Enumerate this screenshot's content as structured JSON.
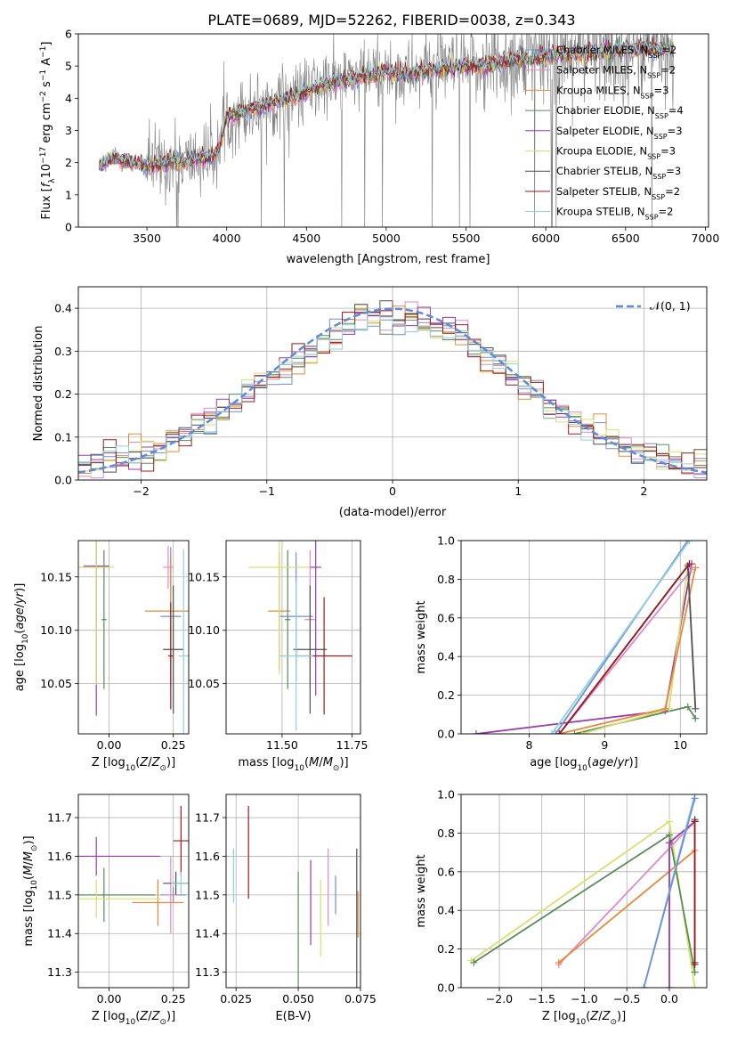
{
  "figure_title": "PLATE=0689, MJD=52262, FIBERID=0038, z=0.343",
  "colors": {
    "chabrier_miles": "#6f8fd6",
    "salpeter_miles": "#e089c6",
    "kroupa_miles": "#e8893a",
    "chabrier_elodie": "#5a8c5a",
    "salpeter_elodie": "#9a3aaf",
    "kroupa_elodie": "#d8e070",
    "chabrier_stelib": "#505050",
    "salpeter_stelib": "#9b1b1b",
    "kroupa_stelib": "#8fd0dc",
    "data": "#808080",
    "normal_curve": "#5b8be0"
  },
  "chart_data": [
    {
      "type": "line",
      "panel": "spectrum",
      "xlabel": "wavelength [Angstrom, rest frame]",
      "ylabel": "Flux [f_λ 10^-17 erg cm^-2 s^-1 A^-1]",
      "xlim": [
        3070,
        7020
      ],
      "ylim": [
        0,
        6
      ],
      "xticks": [
        3500,
        4000,
        4500,
        5000,
        5500,
        6000,
        6500,
        7000
      ],
      "yticks": [
        0,
        1,
        2,
        3,
        4,
        5,
        6
      ],
      "grid": false,
      "legend_position": "right",
      "continuum": {
        "x": [
          3200,
          3300,
          3400,
          3500,
          3600,
          3700,
          3800,
          3900,
          3950,
          4000,
          4100,
          4200,
          4300,
          4400,
          4500,
          4600,
          4700,
          4800,
          4900,
          5000,
          5100,
          5200,
          5300,
          5400,
          5500,
          5600,
          5700,
          5800,
          5900,
          6000,
          6100,
          6200,
          6300,
          6400,
          6500,
          6600,
          6700,
          6800
        ],
        "y": [
          1.9,
          2.2,
          2.0,
          1.9,
          2.0,
          2.0,
          2.1,
          2.2,
          2.4,
          3.4,
          3.6,
          3.7,
          3.9,
          4.0,
          4.2,
          4.4,
          4.5,
          4.6,
          4.7,
          4.8,
          4.75,
          4.8,
          4.9,
          4.95,
          5.0,
          5.0,
          5.1,
          5.2,
          5.2,
          5.3,
          5.35,
          5.4,
          5.4,
          5.45,
          5.5,
          5.55,
          5.5,
          5.6
        ]
      },
      "series": [
        {
          "name": "Chabrier MILES, N_SSP=2",
          "label": "Chabrier MILES, N",
          "nssp": "=2",
          "color_key": "chabrier_miles"
        },
        {
          "name": "Salpeter MILES, N_SSP=2",
          "label": "Salpeter MILES, N",
          "nssp": "=2",
          "color_key": "salpeter_miles"
        },
        {
          "name": "Kroupa MILES, N_SSP=3",
          "label": "Kroupa MILES, N",
          "nssp": "=3",
          "color_key": "kroupa_miles"
        },
        {
          "name": "Chabrier ELODIE, N_SSP=4",
          "label": "Chabrier ELODIE, N",
          "nssp": "=4",
          "color_key": "chabrier_elodie"
        },
        {
          "name": "Salpeter ELODIE, N_SSP=3",
          "label": "Salpeter ELODIE, N",
          "nssp": "=3",
          "color_key": "salpeter_elodie"
        },
        {
          "name": "Kroupa ELODIE, N_SSP=3",
          "label": "Kroupa ELODIE, N",
          "nssp": "=3",
          "color_key": "kroupa_elodie"
        },
        {
          "name": "Chabrier STELIB, N_SSP=3",
          "label": "Chabrier STELIB, N",
          "nssp": "=3",
          "color_key": "chabrier_stelib"
        },
        {
          "name": "Salpeter STELIB, N_SSP=2",
          "label": "Salpeter STELIB, N",
          "nssp": "=2",
          "color_key": "salpeter_stelib"
        },
        {
          "name": "Kroupa STELIB, N_SSP=2",
          "label": "Kroupa STELIB, N",
          "nssp": "=2",
          "color_key": "kroupa_stelib"
        }
      ],
      "legend_sub": "SSP"
    },
    {
      "type": "line",
      "panel": "residuals",
      "xlabel": "(data-model)/error",
      "ylabel": "Normed distribution",
      "xlim": [
        -2.5,
        2.5
      ],
      "ylim": [
        0,
        0.45
      ],
      "xticks": [
        -2,
        -1,
        0,
        1,
        2
      ],
      "yticks": [
        0.0,
        0.1,
        0.2,
        0.3,
        0.4
      ],
      "grid": true,
      "legend_position": "top-right",
      "normal_label": "𝒩(0, 1)",
      "hist_bin_width": 0.1
    },
    {
      "type": "scatter",
      "panel": "age-vs-Z",
      "xlabel": "Z [log10(Z/Z⊙)]",
      "ylabel": "age [log10(age/yr)]",
      "xlim": [
        -0.12,
        0.31
      ],
      "ylim": [
        10.003,
        10.184
      ],
      "xticks": [
        0.0,
        0.25
      ],
      "yticks": [
        10.05,
        10.1,
        10.15
      ],
      "points": [
        {
          "color_key": "chabrier_miles",
          "x": 0.24,
          "y": 10.113,
          "xerr": 0.04,
          "yerr": 0.065
        },
        {
          "color_key": "salpeter_miles",
          "x": 0.23,
          "y": 10.159,
          "xerr": 0.02,
          "yerr": 0.02
        },
        {
          "color_key": "kroupa_miles",
          "x": 0.24,
          "y": 10.118,
          "xerr": 0.1,
          "yerr": 0.05
        },
        {
          "color_key": "chabrier_elodie",
          "x": -0.02,
          "y": 10.11,
          "xerr": 0.01,
          "yerr": 0.065
        },
        {
          "color_key": "salpeter_elodie",
          "x": -0.05,
          "y": 10.16,
          "xerr": 0.05,
          "yerr": 0.14
        },
        {
          "color_key": "kroupa_elodie",
          "x": -0.05,
          "y": 10.159,
          "xerr": 0.07,
          "yerr": 0.11
        },
        {
          "color_key": "chabrier_stelib",
          "x": 0.25,
          "y": 10.082,
          "xerr": 0.04,
          "yerr": 0.06
        },
        {
          "color_key": "salpeter_stelib",
          "x": 0.24,
          "y": 10.076,
          "xerr": 0.01,
          "yerr": 0.05
        },
        {
          "color_key": "kroupa_stelib",
          "x": 0.29,
          "y": 10.076,
          "xerr": 0.02,
          "yerr": 0.1
        }
      ]
    },
    {
      "type": "scatter",
      "panel": "age-vs-mass",
      "xlabel": "mass [log10(M/M⊙)]",
      "ylabel": "",
      "xlim": [
        11.3,
        11.78
      ],
      "ylim": [
        10.003,
        10.184
      ],
      "xticks": [
        11.5,
        11.75
      ],
      "yticks": [
        10.05,
        10.1,
        10.15
      ],
      "points": [
        {
          "color_key": "chabrier_miles",
          "x": 11.55,
          "y": 10.113,
          "xerr": 0.06,
          "yerr": 0.06
        },
        {
          "color_key": "salpeter_miles",
          "x": 11.6,
          "y": 10.11,
          "xerr": 0.02,
          "yerr": 0.065
        },
        {
          "color_key": "kroupa_miles",
          "x": 11.49,
          "y": 10.118,
          "xerr": 0.04,
          "yerr": 0.055
        },
        {
          "color_key": "chabrier_elodie",
          "x": 11.52,
          "y": 10.11,
          "xerr": 0.01,
          "yerr": 0.065
        },
        {
          "color_key": "salpeter_elodie",
          "x": 11.62,
          "y": 10.159,
          "xerr": 0.02,
          "yerr": 0.12
        },
        {
          "color_key": "kroupa_elodie",
          "x": 11.49,
          "y": 10.159,
          "xerr": 0.11,
          "yerr": 0.1
        },
        {
          "color_key": "chabrier_stelib",
          "x": 11.6,
          "y": 10.082,
          "xerr": 0.06,
          "yerr": 0.06
        },
        {
          "color_key": "salpeter_stelib",
          "x": 11.65,
          "y": 10.076,
          "xerr": 0.1,
          "yerr": 0.055
        },
        {
          "color_key": "kroupa_stelib",
          "x": 11.55,
          "y": 10.076,
          "xerr": 0.06,
          "yerr": 0.07
        }
      ]
    },
    {
      "type": "line",
      "panel": "weight-vs-age",
      "xlabel": "age [log10(age/yr)]",
      "ylabel": "mass weight",
      "xlim": [
        7.1,
        10.35
      ],
      "ylim": [
        0,
        1
      ],
      "xticks": [
        8,
        9,
        10
      ],
      "yticks": [
        0.0,
        0.2,
        0.4,
        0.6,
        0.8,
        1.0
      ],
      "grid": true,
      "series": [
        {
          "color_key": "chabrier_elodie",
          "x": [
            8.6,
            10.1,
            10.2
          ],
          "y": [
            0.0,
            0.14,
            0.08
          ]
        },
        {
          "color_key": "salpeter_elodie",
          "x": [
            7.3,
            9.8,
            10.15
          ],
          "y": [
            0.0,
            0.12,
            0.88
          ]
        },
        {
          "color_key": "kroupa_elodie",
          "x": [
            8.7,
            9.85,
            10.1
          ],
          "y": [
            0.0,
            0.13,
            0.87
          ]
        },
        {
          "color_key": "chabrier_miles",
          "x": [
            8.35,
            10.1
          ],
          "y": [
            0.0,
            1.0
          ]
        },
        {
          "color_key": "salpeter_miles",
          "x": [
            8.4,
            10.15
          ],
          "y": [
            0.0,
            0.85
          ]
        },
        {
          "color_key": "kroupa_miles",
          "x": [
            8.4,
            9.8,
            10.2
          ],
          "y": [
            0.0,
            0.13,
            0.86
          ]
        },
        {
          "color_key": "chabrier_stelib",
          "x": [
            8.4,
            10.1,
            10.2
          ],
          "y": [
            0.0,
            0.87,
            0.13
          ]
        },
        {
          "color_key": "salpeter_stelib",
          "x": [
            8.4,
            10.12
          ],
          "y": [
            0.0,
            0.88
          ]
        },
        {
          "color_key": "kroupa_stelib",
          "x": [
            8.3,
            10.12
          ],
          "y": [
            0.0,
            1.0
          ]
        }
      ]
    },
    {
      "type": "scatter",
      "panel": "mass-vs-Z",
      "xlabel": "Z [log10(Z/Z⊙)]",
      "ylabel": "mass [log10(M/M⊙)]",
      "xlim": [
        -0.12,
        0.31
      ],
      "ylim": [
        11.26,
        11.76
      ],
      "xticks": [
        0.0,
        0.25
      ],
      "yticks": [
        11.3,
        11.4,
        11.5,
        11.6,
        11.7
      ],
      "points": [
        {
          "color_key": "chabrier_miles",
          "x": 0.25,
          "y": 11.5,
          "xerr": 0.05,
          "yerr": 0.02
        },
        {
          "color_key": "salpeter_miles",
          "x": 0.24,
          "y": 11.5,
          "xerr": 0.03,
          "yerr": 0.1
        },
        {
          "color_key": "kroupa_miles",
          "x": 0.19,
          "y": 11.48,
          "xerr": 0.1,
          "yerr": 0.06
        },
        {
          "color_key": "chabrier_elodie",
          "x": -0.02,
          "y": 11.5,
          "xerr": 0.2,
          "yerr": 0.07
        },
        {
          "color_key": "salpeter_elodie",
          "x": -0.05,
          "y": 11.6,
          "xerr": 0.25,
          "yerr": 0.05
        },
        {
          "color_key": "kroupa_elodie",
          "x": -0.05,
          "y": 11.49,
          "xerr": 0.25,
          "yerr": 0.05
        },
        {
          "color_key": "chabrier_stelib",
          "x": 0.26,
          "y": 11.53,
          "xerr": 0.05,
          "yerr": 0.03
        },
        {
          "color_key": "salpeter_stelib",
          "x": 0.28,
          "y": 11.64,
          "xerr": 0.03,
          "yerr": 0.09
        },
        {
          "color_key": "kroupa_stelib",
          "x": 0.28,
          "y": 11.53,
          "xerr": 0.04,
          "yerr": 0.03
        }
      ]
    },
    {
      "type": "scatter",
      "panel": "mass-vs-EBV",
      "xlabel": "E(B-V)",
      "ylabel": "",
      "xlim": [
        0.021,
        0.075
      ],
      "ylim": [
        11.26,
        11.76
      ],
      "xticks": [
        0.025,
        0.05,
        0.075
      ],
      "yticks": [
        11.3,
        11.4,
        11.5,
        11.6,
        11.7
      ],
      "points": [
        {
          "color_key": "chabrier_miles",
          "x": 0.065,
          "y": 11.5,
          "xerr": 0.0,
          "yerr": 0.05
        },
        {
          "color_key": "salpeter_miles",
          "x": 0.062,
          "y": 11.52,
          "xerr": 0.0,
          "yerr": 0.1
        },
        {
          "color_key": "kroupa_miles",
          "x": 0.074,
          "y": 11.45,
          "xerr": 0.0,
          "yerr": 0.06
        },
        {
          "color_key": "chabrier_elodie",
          "x": 0.05,
          "y": 11.41,
          "xerr": 0.0,
          "yerr": 0.15
        },
        {
          "color_key": "salpeter_elodie",
          "x": 0.055,
          "y": 11.48,
          "xerr": 0.0,
          "yerr": 0.11
        },
        {
          "color_key": "kroupa_elodie",
          "x": 0.059,
          "y": 11.44,
          "xerr": 0.0,
          "yerr": 0.1
        },
        {
          "color_key": "chabrier_stelib",
          "x": 0.0735,
          "y": 11.42,
          "xerr": 0.0,
          "yerr": 0.2
        },
        {
          "color_key": "salpeter_stelib",
          "x": 0.03,
          "y": 11.61,
          "xerr": 0.0,
          "yerr": 0.12
        },
        {
          "color_key": "kroupa_stelib",
          "x": 0.024,
          "y": 11.55,
          "xerr": 0.0,
          "yerr": 0.07
        }
      ]
    },
    {
      "type": "line",
      "panel": "weight-vs-Z",
      "xlabel": "Z [log10(Z/Z⊙)]",
      "ylabel": "mass weight",
      "xlim": [
        -2.45,
        0.44
      ],
      "ylim": [
        0,
        1
      ],
      "xticks": [
        -2.0,
        -1.5,
        -1.0,
        -0.5,
        0.0
      ],
      "yticks": [
        0.0,
        0.2,
        0.4,
        0.6,
        0.8,
        1.0
      ],
      "grid": true,
      "series": [
        {
          "color_key": "kroupa_elodie",
          "x": [
            -2.33,
            0.0,
            0.3
          ],
          "y": [
            0.14,
            0.86,
            0.0
          ]
        },
        {
          "color_key": "chabrier_elodie",
          "x": [
            -2.3,
            0.0,
            0.3
          ],
          "y": [
            0.13,
            0.79,
            0.08
          ]
        },
        {
          "color_key": "salpeter_miles",
          "x": [
            -1.3,
            0.3
          ],
          "y": [
            0.12,
            0.86
          ]
        },
        {
          "color_key": "kroupa_miles",
          "x": [
            -1.3,
            0.3
          ],
          "y": [
            0.13,
            0.71
          ]
        },
        {
          "color_key": "salpeter_elodie",
          "x": [
            0.0,
            0.0,
            0.3
          ],
          "y": [
            0.0,
            0.75,
            0.86
          ]
        },
        {
          "color_key": "chabrier_stelib",
          "x": [
            0.3,
            0.3
          ],
          "y": [
            0.13,
            0.87
          ]
        },
        {
          "color_key": "kroupa_stelib",
          "x": [
            -0.3,
            0.3
          ],
          "y": [
            0.0,
            1.0
          ]
        },
        {
          "color_key": "chabrier_miles",
          "x": [
            -0.3,
            0.3
          ],
          "y": [
            0.0,
            0.98
          ]
        },
        {
          "color_key": "salpeter_stelib",
          "x": [
            0.3,
            0.3
          ],
          "y": [
            0.12,
            0.86
          ]
        }
      ]
    }
  ]
}
